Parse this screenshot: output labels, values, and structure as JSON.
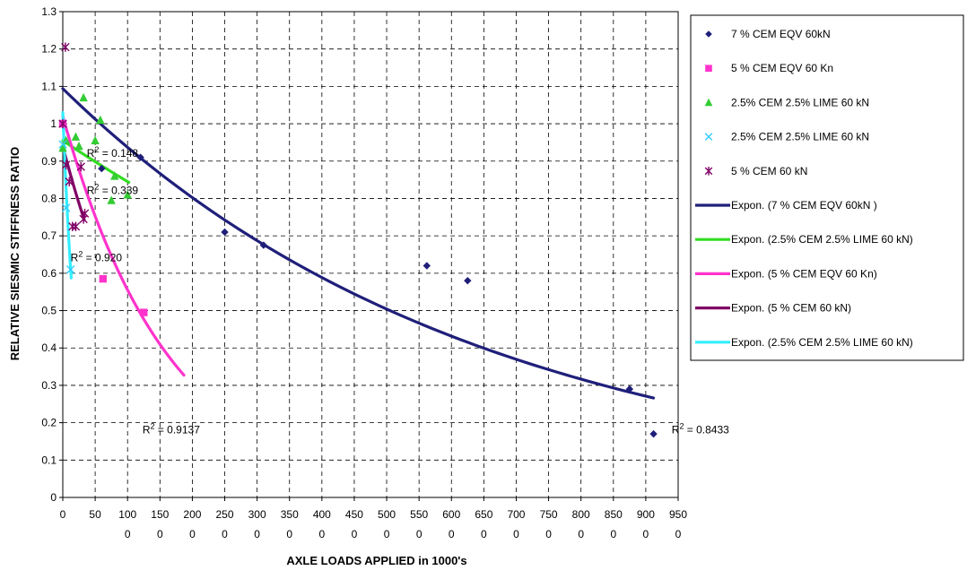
{
  "chart_data": {
    "type": "scatter",
    "title": "",
    "xlabel": "AXLE LOADS APPLIED in 1000's",
    "ylabel": "RELATIVE SIESMIC STIFFNESS RATIO",
    "xlim": [
      0,
      950
    ],
    "ylim": [
      0,
      1.3
    ],
    "x_tick_labels": [
      {
        "value": 0,
        "line1": "0",
        "line2": ""
      },
      {
        "value": 50,
        "line1": "50",
        "line2": ""
      },
      {
        "value": 100,
        "line1": "100",
        "line2": "0"
      },
      {
        "value": 150,
        "line1": "150",
        "line2": "0"
      },
      {
        "value": 200,
        "line1": "200",
        "line2": "0"
      },
      {
        "value": 250,
        "line1": "250",
        "line2": "0"
      },
      {
        "value": 300,
        "line1": "300",
        "line2": "0"
      },
      {
        "value": 350,
        "line1": "350",
        "line2": "0"
      },
      {
        "value": 400,
        "line1": "400",
        "line2": "0"
      },
      {
        "value": 450,
        "line1": "450",
        "line2": "0"
      },
      {
        "value": 500,
        "line1": "500",
        "line2": "0"
      },
      {
        "value": 550,
        "line1": "550",
        "line2": "0"
      },
      {
        "value": 600,
        "line1": "600",
        "line2": "0"
      },
      {
        "value": 650,
        "line1": "650",
        "line2": "0"
      },
      {
        "value": 700,
        "line1": "700",
        "line2": "0"
      },
      {
        "value": 750,
        "line1": "750",
        "line2": "0"
      },
      {
        "value": 800,
        "line1": "800",
        "line2": "0"
      },
      {
        "value": 850,
        "line1": "850",
        "line2": "0"
      },
      {
        "value": 900,
        "line1": "900",
        "line2": "0"
      },
      {
        "value": 950,
        "line1": "950",
        "line2": "0"
      }
    ],
    "y_tick_labels": [
      "0",
      "0.1",
      "0.2",
      "0.3",
      "0.4",
      "0.5",
      "0.6",
      "0.7",
      "0.8",
      "0.9",
      "1",
      "1.1",
      "1.2",
      "1.3"
    ],
    "grid": true,
    "legend_position": "right",
    "series": [
      {
        "name": "7 % CEM EQV 60kN",
        "marker": "diamond",
        "color": "#1F1F7A",
        "points": [
          [
            0,
            1.0
          ],
          [
            60,
            0.88
          ],
          [
            120,
            0.91
          ],
          [
            250,
            0.71
          ],
          [
            310,
            0.675
          ],
          [
            562,
            0.62
          ],
          [
            625,
            0.58
          ],
          [
            875,
            0.29
          ],
          [
            912,
            0.17
          ]
        ]
      },
      {
        "name": "5 % CEM EQV 60 Kn",
        "marker": "square",
        "color": "#FF33CC",
        "points": [
          [
            0,
            1.0
          ],
          [
            62,
            0.585
          ],
          [
            125,
            0.495
          ]
        ]
      },
      {
        "name": "2.5% CEM 2.5% LIME 60 kN",
        "marker": "triangle",
        "color": "#33CC33",
        "points": [
          [
            0,
            0.935
          ],
          [
            5,
            0.955
          ],
          [
            20,
            0.965
          ],
          [
            25,
            0.94
          ],
          [
            32,
            1.07
          ],
          [
            50,
            0.955
          ],
          [
            58,
            1.01
          ],
          [
            75,
            0.795
          ],
          [
            80,
            0.86
          ],
          [
            100,
            0.81
          ]
        ]
      },
      {
        "name": "2.5% CEM 2.5% LIME 60 kN",
        "marker": "x",
        "color": "#33CCFF",
        "points": [
          [
            0,
            0.945
          ],
          [
            5,
            0.775
          ],
          [
            12,
            0.61
          ]
        ]
      },
      {
        "name": "5 % CEM 60 kN",
        "marker": "star",
        "color": "#800066",
        "points": [
          [
            0,
            1.0
          ],
          [
            4,
            1.205
          ],
          [
            5,
            0.89
          ],
          [
            10,
            0.845
          ],
          [
            15,
            0.725
          ],
          [
            20,
            0.725
          ],
          [
            28,
            0.885
          ],
          [
            32,
            0.745
          ],
          [
            34,
            0.76
          ]
        ]
      }
    ],
    "trendlines": [
      {
        "name": "Expon. (7 % CEM EQV 60kN )",
        "color": "#1F1F7A",
        "type": "exponential",
        "a": 1.094,
        "b": -0.00155,
        "x_range": [
          0,
          912
        ],
        "r2": "0.8433"
      },
      {
        "name": "Expon. (2.5% CEM 2.5% LIME 60 kN)",
        "color": "#33DD22",
        "type": "exponential",
        "a": 0.955,
        "b": -0.00122,
        "x_range": [
          0,
          102
        ],
        "r2": "0.339"
      },
      {
        "name": "Expon. (5 % CEM EQV 60 Kn)",
        "color": "#FF33CC",
        "type": "exponential",
        "a": 1.02,
        "b": -0.00608,
        "x_range": [
          0,
          187
        ],
        "r2": "0.9137"
      },
      {
        "name": "Expon. (5 % CEM 60 kN)",
        "color": "#800066",
        "type": "exponential",
        "a": 0.94,
        "b": -0.00711,
        "x_range": [
          0,
          33
        ],
        "r2": "0.148"
      },
      {
        "name": "Expon. (2.5% CEM 2.5% LIME 60 kN)",
        "color": "#33EEFF",
        "type": "exponential",
        "a": 1.03,
        "b": -0.0432,
        "x_range": [
          0,
          13
        ],
        "r2": "0.920"
      }
    ],
    "annotations": [
      {
        "text": "R",
        "sup": "2",
        "rest": " = 0.148",
        "x": 37,
        "y": 0.912
      },
      {
        "text": "R",
        "sup": "2",
        "rest": " = 0.339",
        "x": 37,
        "y": 0.812
      },
      {
        "text": "R",
        "sup": "2",
        "rest": " = 0.920",
        "x": 12,
        "y": 0.632
      },
      {
        "text": "R",
        "sup": "2",
        "rest": " = 0.9137",
        "x": 123,
        "y": 0.172
      },
      {
        "text": "R",
        "sup": "2",
        "rest": " = 0.8433",
        "x": 940,
        "y": 0.172
      }
    ]
  }
}
